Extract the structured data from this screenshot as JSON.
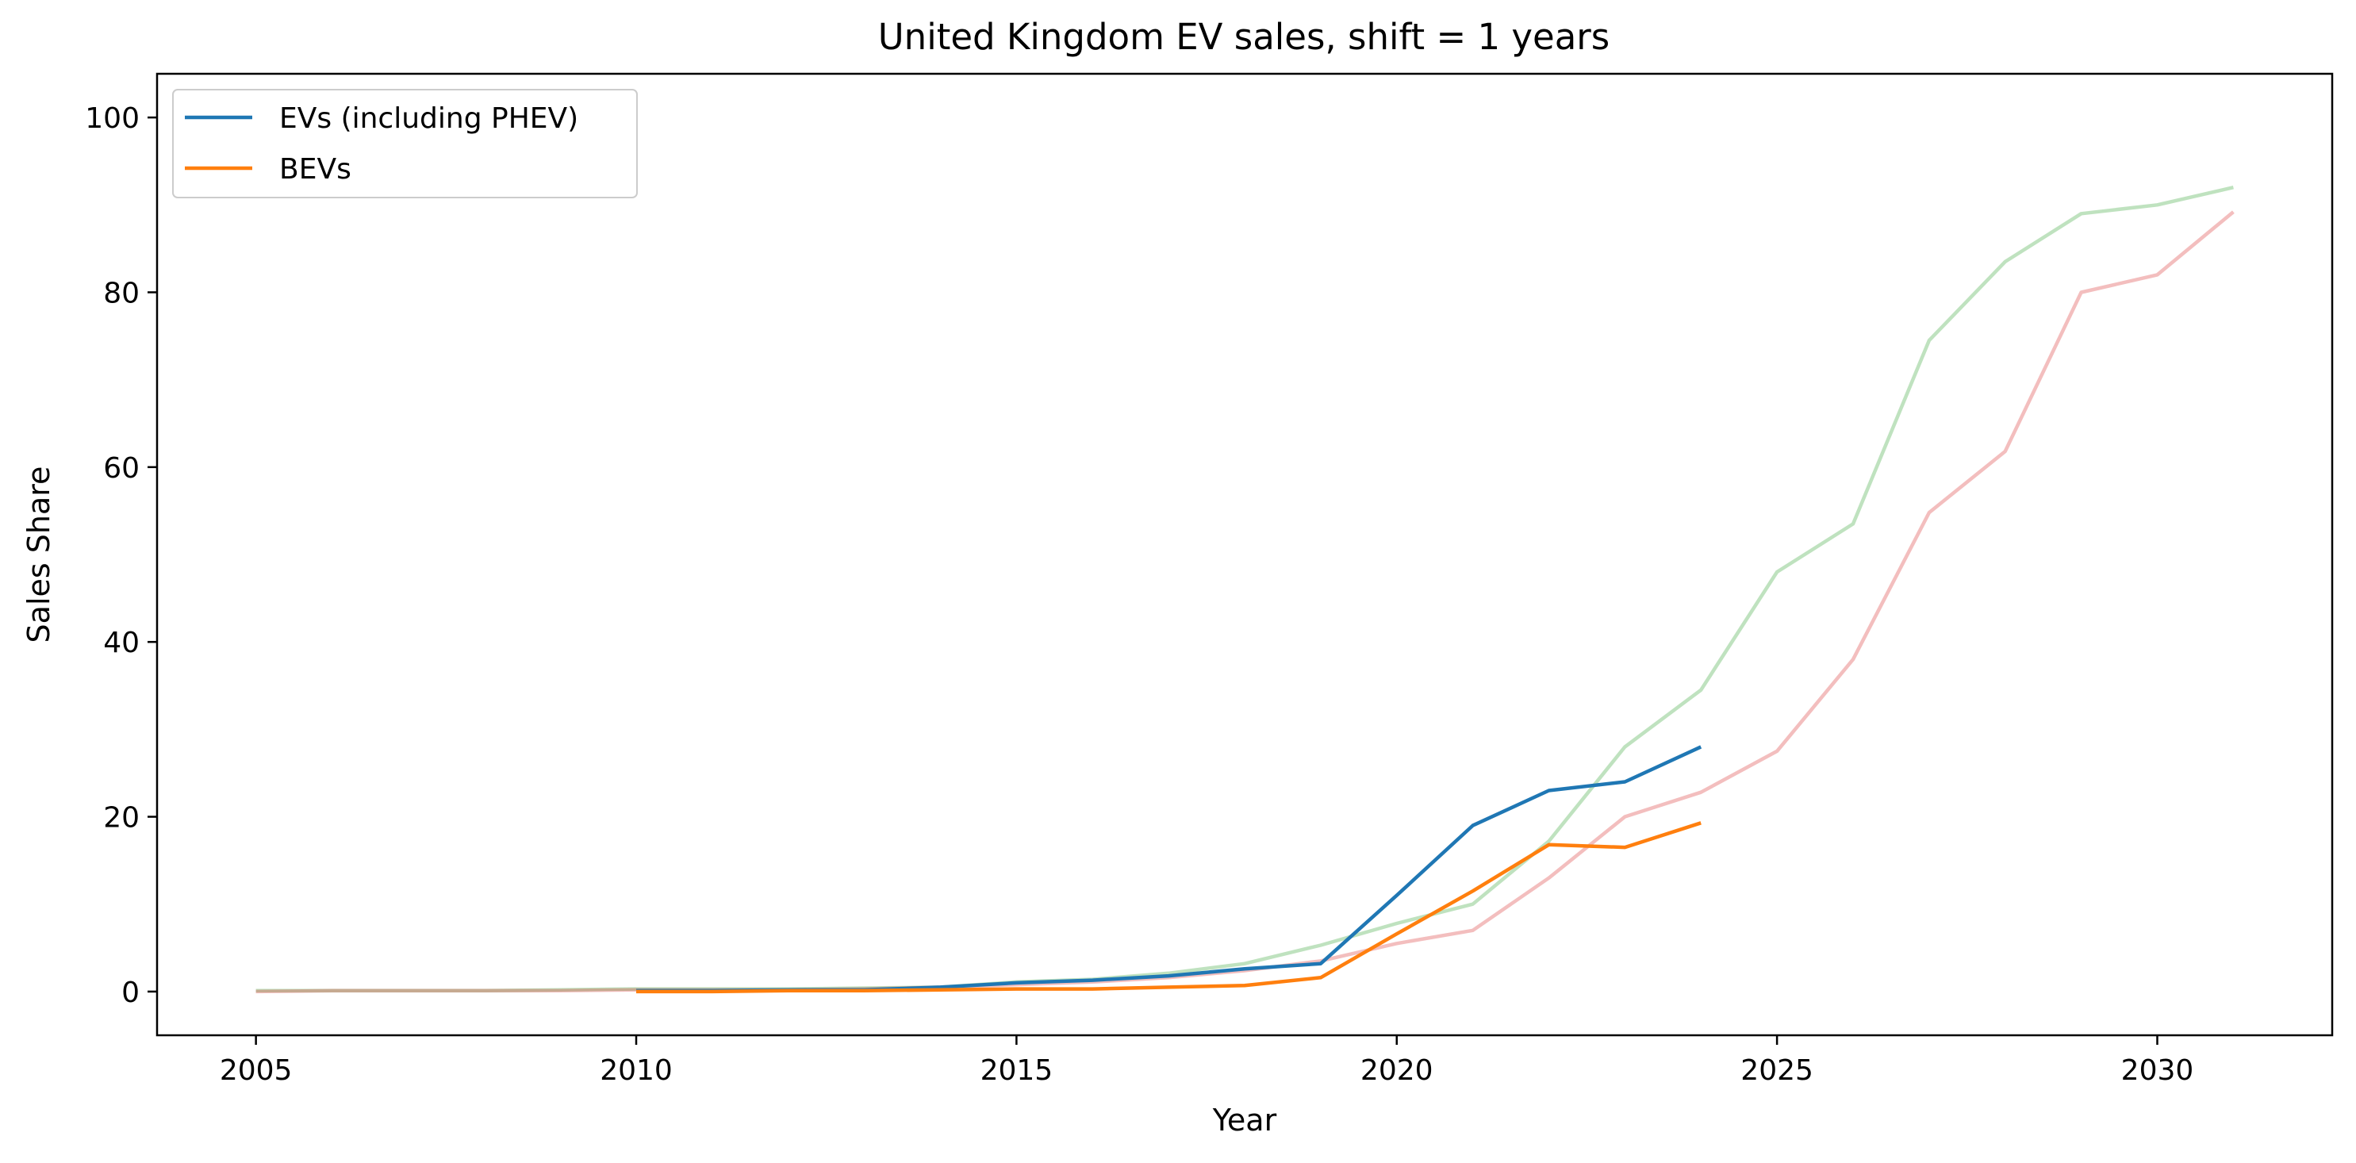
{
  "chart_data": {
    "type": "line",
    "title": "United Kingdom EV sales, shift = 1 years",
    "xlabel": "Year",
    "ylabel": "Sales Share",
    "xlim": [
      2003.7,
      2032.3
    ],
    "ylim": [
      -5,
      105
    ],
    "xticks": [
      2005,
      2010,
      2015,
      2020,
      2025,
      2030
    ],
    "yticks": [
      0,
      20,
      40,
      60,
      80,
      100
    ],
    "grid": false,
    "legend": {
      "placement": "top-left",
      "entries": [
        "EVs (including PHEV)",
        "BEVs"
      ]
    },
    "series": [
      {
        "name": "",
        "color": "#2ca02c",
        "opacity": 0.3,
        "x": [
          2005,
          2006,
          2007,
          2008,
          2009,
          2010,
          2011,
          2012,
          2013,
          2014,
          2015,
          2016,
          2017,
          2018,
          2019,
          2020,
          2021,
          2022,
          2023,
          2024,
          2025,
          2026,
          2027,
          2028,
          2029,
          2030,
          2031
        ],
        "y": [
          0.1,
          0.1,
          0.1,
          0.1,
          0.2,
          0.3,
          0.3,
          0.3,
          0.4,
          0.5,
          1.1,
          1.4,
          2.1,
          3.2,
          5.3,
          7.8,
          10.0,
          17.2,
          28.0,
          34.5,
          48.0,
          53.5,
          74.5,
          83.5,
          89.0,
          90.0,
          92.0
        ]
      },
      {
        "name": "",
        "color": "#d62728",
        "opacity": 0.3,
        "x": [
          2005,
          2006,
          2007,
          2008,
          2009,
          2010,
          2011,
          2012,
          2013,
          2014,
          2015,
          2016,
          2017,
          2018,
          2019,
          2020,
          2021,
          2022,
          2023,
          2024,
          2025,
          2026,
          2027,
          2028,
          2029,
          2030,
          2031
        ],
        "y": [
          0.0,
          0.1,
          0.1,
          0.1,
          0.1,
          0.2,
          0.2,
          0.2,
          0.3,
          0.5,
          0.8,
          1.1,
          1.6,
          2.4,
          3.5,
          5.5,
          7.0,
          13.0,
          20.0,
          22.8,
          27.5,
          38.0,
          54.8,
          61.8,
          80.0,
          82.0,
          89.2
        ]
      },
      {
        "name": "EVs (including PHEV)",
        "color": "#1f77b4",
        "opacity": 1,
        "x": [
          2010,
          2011,
          2012,
          2013,
          2014,
          2015,
          2016,
          2017,
          2018,
          2019,
          2020,
          2021,
          2022,
          2023,
          2024
        ],
        "y": [
          0.1,
          0.1,
          0.2,
          0.2,
          0.5,
          1.0,
          1.3,
          1.8,
          2.6,
          3.2,
          11.0,
          19.0,
          23.0,
          24.0,
          28.0
        ]
      },
      {
        "name": "BEVs",
        "color": "#ff7f0e",
        "opacity": 1,
        "x": [
          2010,
          2011,
          2012,
          2013,
          2014,
          2015,
          2016,
          2017,
          2018,
          2019,
          2020,
          2021,
          2022,
          2023,
          2024
        ],
        "y": [
          0.0,
          0.0,
          0.1,
          0.1,
          0.2,
          0.3,
          0.3,
          0.5,
          0.7,
          1.6,
          6.6,
          11.5,
          16.8,
          16.5,
          19.3
        ]
      }
    ]
  }
}
